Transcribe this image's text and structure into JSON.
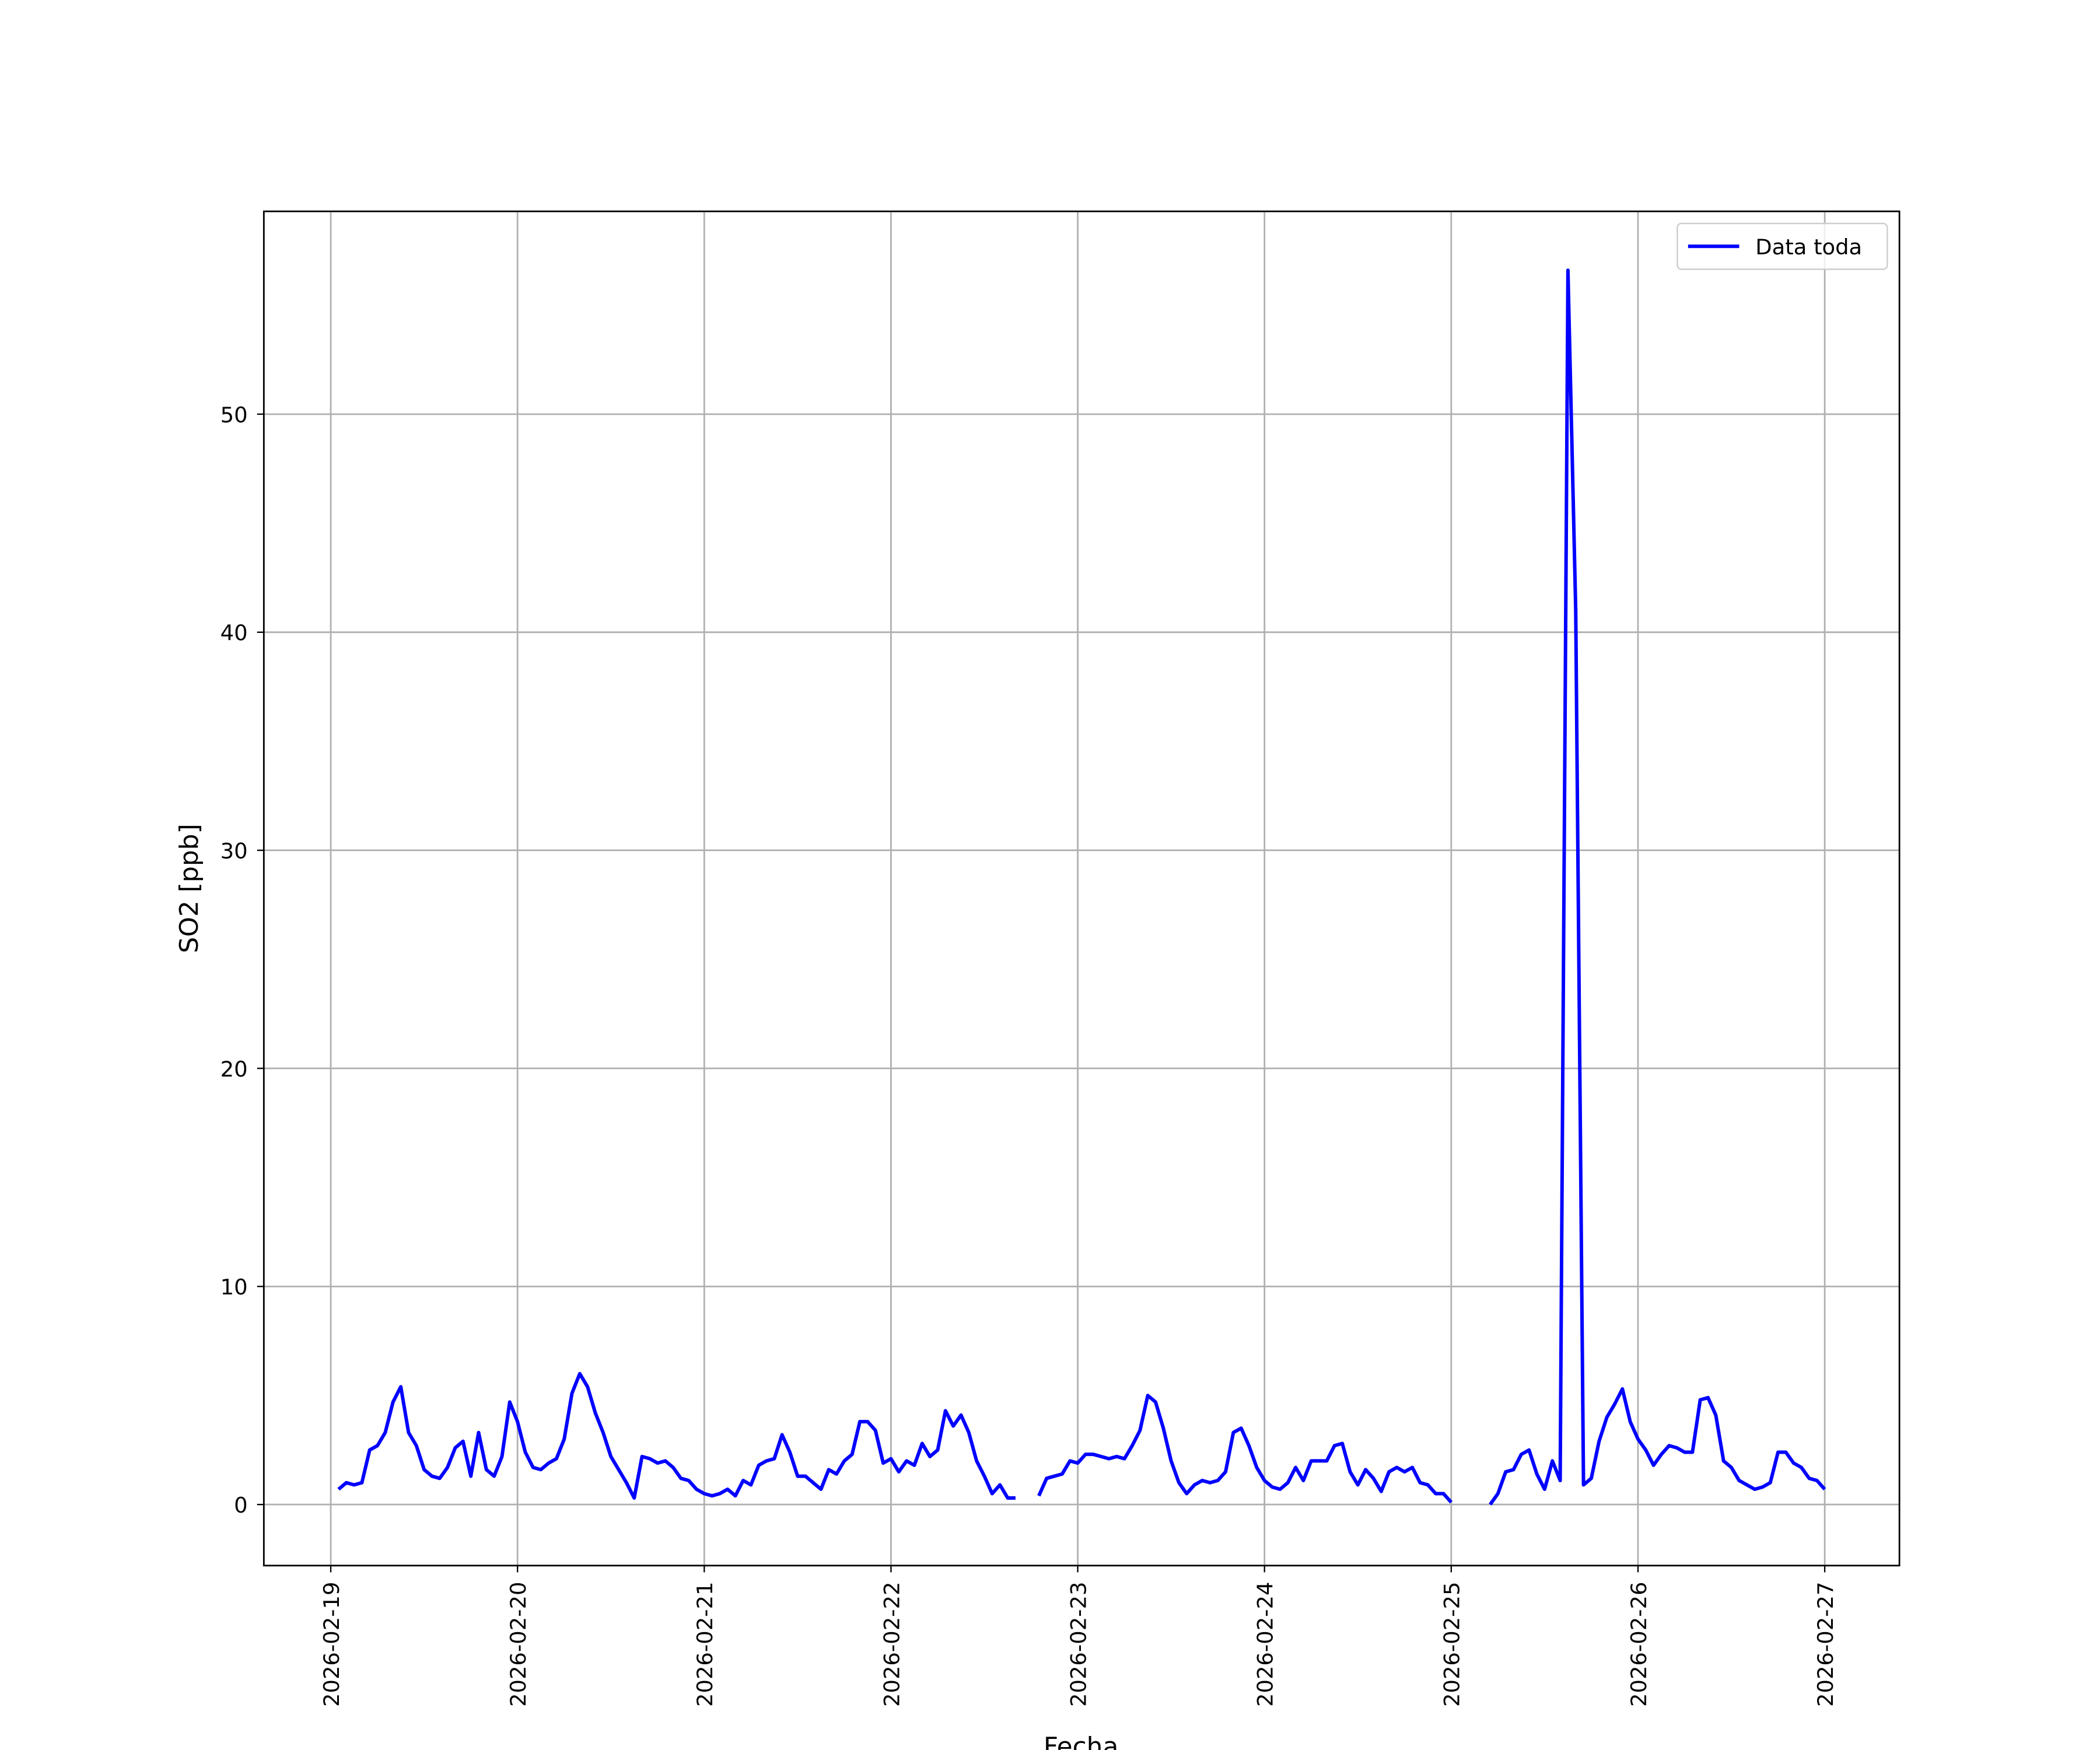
{
  "chart_data": {
    "type": "line",
    "xlabel": "Fecha",
    "ylabel": "SO2 [ppb]",
    "x": [
      1,
      2,
      3,
      4,
      5,
      6,
      7,
      8,
      9,
      10,
      11,
      12,
      13,
      14,
      15,
      16,
      17,
      18,
      19,
      20,
      21,
      22,
      23,
      24,
      25,
      26,
      27,
      28,
      29,
      30,
      31,
      32,
      33,
      34,
      35,
      36,
      37,
      38,
      39,
      40,
      41,
      42,
      43,
      44,
      45,
      46,
      47,
      48,
      49,
      50,
      51,
      52,
      53,
      54,
      55,
      56,
      57,
      58,
      59,
      60,
      61,
      62,
      63,
      64,
      65,
      66,
      67,
      68,
      69,
      70,
      71,
      72,
      73,
      74,
      75,
      76,
      77,
      78,
      79,
      80,
      81,
      82,
      83,
      84,
      85,
      86,
      87,
      88,
      89,
      90,
      91,
      92,
      93,
      94,
      95,
      96,
      97,
      98,
      99,
      100,
      101,
      102,
      103,
      104,
      105,
      106,
      107,
      108,
      109,
      110,
      111,
      112,
      113,
      114,
      115,
      116,
      117,
      118,
      119,
      120,
      121,
      122,
      123,
      124,
      125,
      126,
      127,
      128,
      129,
      130,
      131,
      132,
      133,
      134,
      135,
      136,
      137,
      138,
      139,
      140,
      141,
      142,
      143,
      144,
      145,
      146,
      147,
      148,
      149,
      150,
      151,
      152,
      153,
      154,
      155,
      156,
      157,
      158,
      159,
      160,
      161,
      162,
      163,
      164,
      165,
      166,
      167,
      168,
      169,
      170,
      171,
      172,
      173,
      174,
      175,
      176,
      177,
      178,
      179,
      180,
      181,
      182,
      183,
      184,
      185,
      186,
      187,
      188,
      189,
      190,
      191,
      192
    ],
    "series": [
      {
        "name": "Data toda",
        "color": "#0000ff",
        "values": [
          0.7,
          1.0,
          0.9,
          1.0,
          2.5,
          2.7,
          3.3,
          4.7,
          5.4,
          3.3,
          2.7,
          1.6,
          1.3,
          1.2,
          1.7,
          2.6,
          2.9,
          1.3,
          3.3,
          1.6,
          1.3,
          2.2,
          4.7,
          3.8,
          2.4,
          1.7,
          1.6,
          1.9,
          2.1,
          3.0,
          5.1,
          6.0,
          5.4,
          4.2,
          3.3,
          2.2,
          1.6,
          1.0,
          0.3,
          2.2,
          2.1,
          1.9,
          2.0,
          1.7,
          1.2,
          1.1,
          0.7,
          0.5,
          0.4,
          0.5,
          0.7,
          0.4,
          1.1,
          0.9,
          1.8,
          2.0,
          2.1,
          3.2,
          2.4,
          1.3,
          1.3,
          1.0,
          0.7,
          1.6,
          1.4,
          2.0,
          2.3,
          3.8,
          3.8,
          3.4,
          1.9,
          2.1,
          1.5,
          2.0,
          1.8,
          2.8,
          2.2,
          2.5,
          4.3,
          3.6,
          4.1,
          3.3,
          2.0,
          1.3,
          0.5,
          0.9,
          0.3,
          0.3,
          null,
          null,
          0.4,
          1.2,
          1.3,
          1.4,
          2.0,
          1.9,
          2.3,
          2.3,
          2.2,
          2.1,
          2.2,
          2.1,
          2.7,
          3.4,
          5.0,
          4.7,
          3.5,
          2.0,
          1.0,
          0.5,
          0.9,
          1.1,
          1.0,
          1.1,
          1.5,
          3.3,
          3.5,
          2.7,
          1.7,
          1.1,
          0.8,
          0.7,
          1.0,
          1.7,
          1.1,
          2.0,
          2.0,
          2.0,
          2.7,
          2.8,
          1.5,
          0.9,
          1.6,
          1.2,
          0.6,
          1.5,
          1.7,
          1.5,
          1.7,
          1.0,
          0.9,
          0.5,
          0.5,
          0.1,
          null,
          null,
          null,
          null,
          0.0,
          0.5,
          1.5,
          1.6,
          2.3,
          2.5,
          1.4,
          0.7,
          2.0,
          1.1,
          56.6,
          41.0,
          0.9,
          1.2,
          2.9,
          4.0,
          4.6,
          5.3,
          3.8,
          3.0,
          2.5,
          1.8,
          2.3,
          2.7,
          2.6,
          2.4,
          2.4,
          4.8,
          4.9,
          4.1,
          2.0,
          1.7,
          1.1,
          0.9,
          0.7,
          0.8,
          1.0,
          2.4,
          2.4,
          1.9,
          1.7,
          1.2,
          1.1,
          0.7
        ]
      }
    ],
    "xlim": [
      -8.6,
      201.6
    ],
    "xticks": [
      {
        "value": 0,
        "label": "2026-02-19"
      },
      {
        "value": 24,
        "label": "2026-02-20"
      },
      {
        "value": 48,
        "label": "2026-02-21"
      },
      {
        "value": 72,
        "label": "2026-02-22"
      },
      {
        "value": 96,
        "label": "2026-02-23"
      },
      {
        "value": 120,
        "label": "2026-02-24"
      },
      {
        "value": 144,
        "label": "2026-02-25"
      },
      {
        "value": 168,
        "label": "2026-02-26"
      },
      {
        "value": 192,
        "label": "2026-02-27"
      }
    ],
    "ylim": [
      -2.8,
      59.3
    ],
    "yticks": [
      0,
      10,
      20,
      30,
      40,
      50
    ],
    "grid": true,
    "legend": "upper right"
  }
}
